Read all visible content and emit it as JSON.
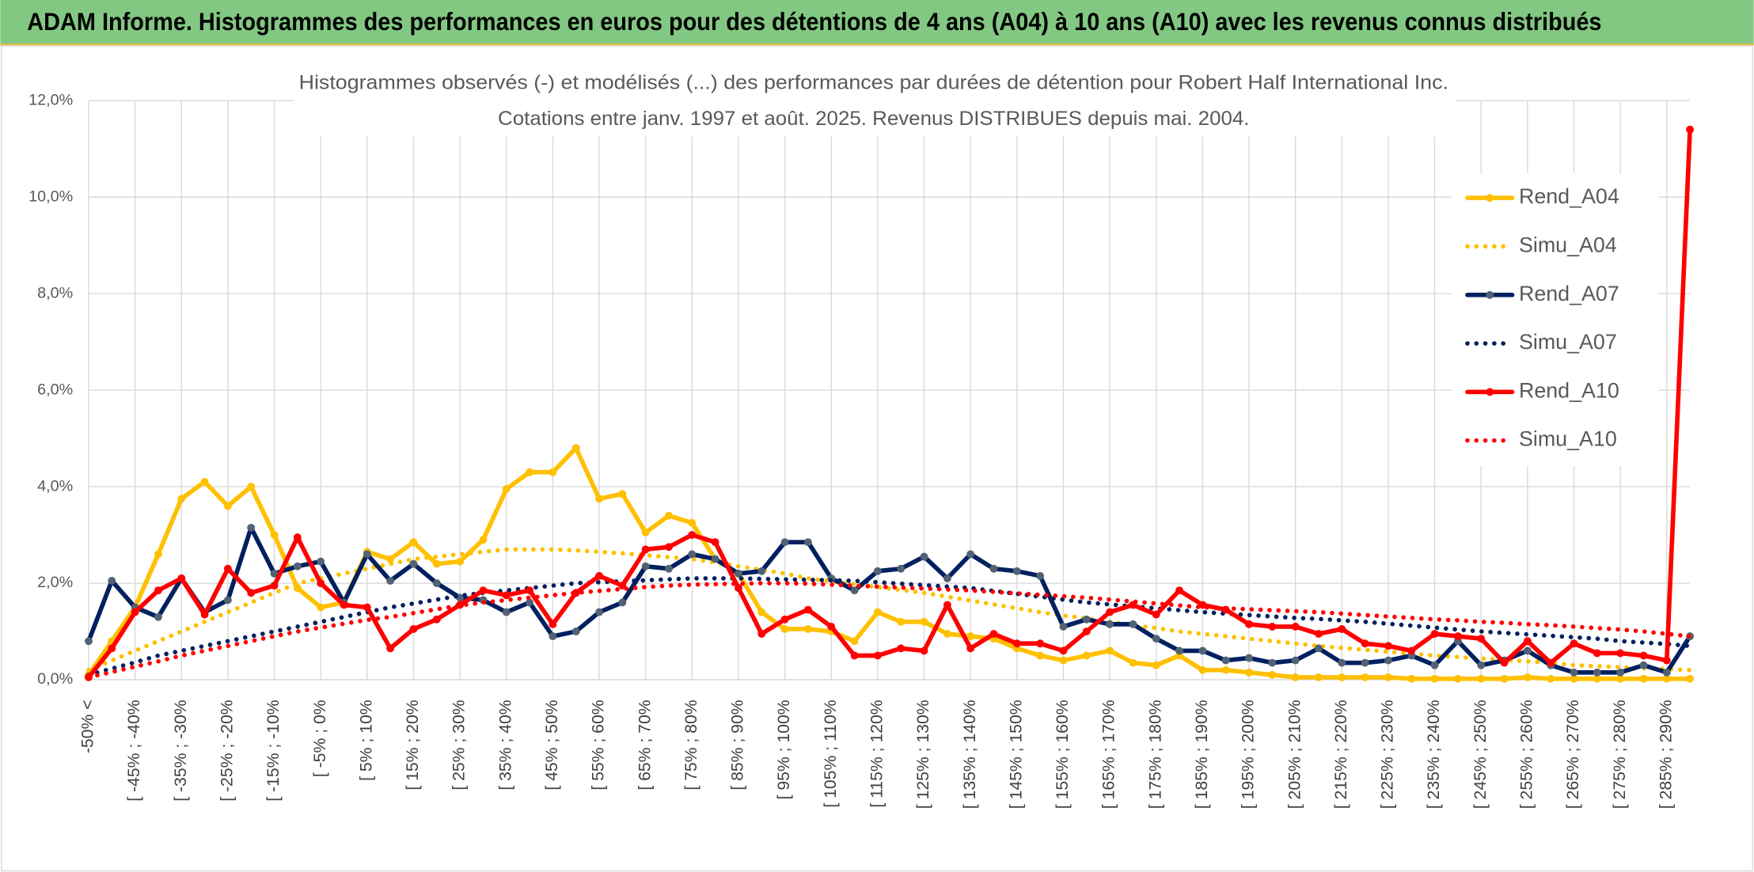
{
  "chart_data": {
    "type": "line",
    "header": "ADAM Informe. Histogrammes des performances en euros pour des détentions de 4 ans (A04) à 10 ans (A10) avec les revenus connus distribués",
    "title": "Histogrammes observés (-) et modélisés (...) des performances par durées de détention pour Robert Half International Inc.",
    "subtitle": "Cotations entre janv. 1997 et août. 2025. Revenus DISTRIBUES depuis mai. 2004.",
    "categories": [
      "-50% <",
      null,
      "[ -45% ; -40%",
      null,
      "[ -35% ; -30%",
      null,
      "[ -25% ; -20%",
      null,
      "[ -15% ; -10%",
      null,
      "[ -5% ; 0%",
      null,
      "[ 5% ; 10%",
      null,
      "[ 15% ; 20%",
      null,
      "[ 25% ; 30%",
      null,
      "[ 35% ; 40%",
      null,
      "[ 45% ; 50%",
      null,
      "[ 55% ; 60%",
      null,
      "[ 65% ; 70%",
      null,
      "[ 75% ; 80%",
      null,
      "[ 85% ; 90%",
      null,
      "[ 95% ; 100%",
      null,
      "[ 105% ; 110%",
      null,
      "[ 115% ; 120%",
      null,
      "[ 125% ; 130%",
      null,
      "[ 135% ; 140%",
      null,
      "[ 145% ; 150%",
      null,
      "[ 155% ; 160%",
      null,
      "[ 165% ; 170%",
      null,
      "[ 175% ; 180%",
      null,
      "[ 185% ; 190%",
      null,
      "[ 195% ; 200%",
      null,
      "[ 205% ; 210%",
      null,
      "[ 215% ; 220%",
      null,
      "[ 225% ; 230%",
      null,
      "[ 235% ; 240%",
      null,
      "[ 245% ; 250%",
      null,
      "[ 255% ; 260%",
      null,
      "[ 265% ; 270%",
      null,
      "[ 275% ; 280%",
      null,
      "[ 285% ; 290%",
      null
    ],
    "ylim": [
      0,
      12
    ],
    "yticks": [
      {
        "value": 0,
        "label": "0,0%"
      },
      {
        "value": 2,
        "label": "2,0%"
      },
      {
        "value": 4,
        "label": "4,0%"
      },
      {
        "value": 6,
        "label": "6,0%"
      },
      {
        "value": 8,
        "label": "8,0%"
      },
      {
        "value": 10,
        "label": "10,0%"
      },
      {
        "value": 12,
        "label": "12,0%"
      }
    ],
    "grid": true,
    "legend": "right",
    "series": [
      {
        "name": "Rend_A04",
        "color": "#ffc000",
        "style": "solid",
        "marker_color": "#ffc000",
        "values": [
          0.1,
          0.8,
          1.5,
          2.6,
          3.75,
          4.1,
          3.6,
          4.0,
          3.0,
          1.9,
          1.5,
          1.6,
          2.65,
          2.5,
          2.85,
          2.4,
          2.45,
          2.9,
          3.95,
          4.3,
          4.3,
          4.8,
          3.75,
          3.85,
          3.05,
          3.4,
          3.25,
          2.5,
          2.2,
          1.4,
          1.05,
          1.05,
          1.0,
          0.8,
          1.4,
          1.2,
          1.2,
          0.95,
          0.9,
          0.85,
          0.65,
          0.5,
          0.4,
          0.5,
          0.6,
          0.35,
          0.3,
          0.5,
          0.2,
          0.2,
          0.15,
          0.1,
          0.05,
          0.05,
          0.05,
          0.05,
          0.05,
          0.02,
          0.02,
          0.02,
          0.02,
          0.02,
          0.05,
          0.02,
          0.02,
          0.02,
          0.02,
          0.02,
          0.02,
          0.02
        ]
      },
      {
        "name": "Simu_A04",
        "color": "#ffc000",
        "style": "dotted",
        "values": [
          0.2,
          0.4,
          0.6,
          0.8,
          1.0,
          1.2,
          1.4,
          1.6,
          1.8,
          2.0,
          2.1,
          2.2,
          2.3,
          2.4,
          2.5,
          2.55,
          2.6,
          2.65,
          2.7,
          2.7,
          2.7,
          2.68,
          2.65,
          2.62,
          2.58,
          2.54,
          2.5,
          2.43,
          2.35,
          2.28,
          2.2,
          2.1,
          2.04,
          1.98,
          1.92,
          1.86,
          1.8,
          1.72,
          1.64,
          1.56,
          1.48,
          1.4,
          1.33,
          1.27,
          1.2,
          1.13,
          1.07,
          1.0,
          0.95,
          0.9,
          0.85,
          0.8,
          0.75,
          0.7,
          0.66,
          0.62,
          0.58,
          0.54,
          0.5,
          0.47,
          0.44,
          0.41,
          0.38,
          0.35,
          0.3,
          0.28,
          0.26,
          0.24,
          0.22,
          0.2
        ]
      },
      {
        "name": "Rend_A07",
        "color": "#002060",
        "style": "solid",
        "marker_color": "#526275",
        "values": [
          0.8,
          2.05,
          1.5,
          1.3,
          2.1,
          1.4,
          1.65,
          3.15,
          2.2,
          2.35,
          2.45,
          1.6,
          2.6,
          2.05,
          2.4,
          2.0,
          1.7,
          1.65,
          1.4,
          1.6,
          0.9,
          1.0,
          1.4,
          1.6,
          2.35,
          2.3,
          2.6,
          2.5,
          2.2,
          2.25,
          2.85,
          2.85,
          2.1,
          1.85,
          2.25,
          2.3,
          2.55,
          2.1,
          2.6,
          2.3,
          2.25,
          2.15,
          1.1,
          1.25,
          1.15,
          1.15,
          0.85,
          0.6,
          0.6,
          0.4,
          0.45,
          0.35,
          0.4,
          0.65,
          0.35,
          0.35,
          0.4,
          0.5,
          0.3,
          0.8,
          0.3,
          0.4,
          0.6,
          0.3,
          0.15,
          0.15,
          0.15,
          0.3,
          0.15,
          0.9
        ]
      },
      {
        "name": "Simu_A07",
        "color": "#002060",
        "style": "dotted",
        "values": [
          0.1,
          0.23,
          0.36,
          0.5,
          0.6,
          0.7,
          0.8,
          0.9,
          1.0,
          1.1,
          1.2,
          1.3,
          1.4,
          1.5,
          1.58,
          1.66,
          1.74,
          1.8,
          1.85,
          1.9,
          1.95,
          2.0,
          2.02,
          2.04,
          2.06,
          2.08,
          2.1,
          2.1,
          2.1,
          2.09,
          2.08,
          2.07,
          2.06,
          2.05,
          2.02,
          1.99,
          1.96,
          1.93,
          1.9,
          1.84,
          1.78,
          1.72,
          1.66,
          1.6,
          1.56,
          1.52,
          1.48,
          1.44,
          1.4,
          1.37,
          1.34,
          1.31,
          1.28,
          1.26,
          1.23,
          1.2,
          1.16,
          1.12,
          1.08,
          1.04,
          1.0,
          0.97,
          0.94,
          0.91,
          0.88,
          0.85,
          0.8,
          0.77,
          0.74,
          0.7
        ]
      },
      {
        "name": "Rend_A10",
        "color": "#ff0000",
        "style": "solid",
        "marker_color": "#ff0000",
        "values": [
          0.05,
          0.65,
          1.4,
          1.85,
          2.1,
          1.35,
          2.3,
          1.8,
          1.95,
          2.95,
          2.0,
          1.55,
          1.5,
          0.65,
          1.05,
          1.25,
          1.55,
          1.85,
          1.75,
          1.85,
          1.15,
          1.8,
          2.15,
          1.95,
          2.7,
          2.75,
          3.0,
          2.85,
          1.9,
          0.95,
          1.25,
          1.45,
          1.1,
          0.5,
          0.5,
          0.65,
          0.6,
          1.55,
          0.65,
          0.95,
          0.75,
          0.75,
          0.6,
          1.0,
          1.4,
          1.55,
          1.35,
          1.85,
          1.55,
          1.45,
          1.15,
          1.1,
          1.1,
          0.95,
          1.05,
          0.75,
          0.7,
          0.6,
          0.95,
          0.9,
          0.85,
          0.35,
          0.8,
          0.35,
          0.75,
          0.55,
          0.55,
          0.5,
          0.4,
          11.4
        ]
      },
      {
        "name": "Simu_A10",
        "color": "#ff0000",
        "style": "dotted",
        "values": [
          0.05,
          0.16,
          0.27,
          0.38,
          0.5,
          0.6,
          0.7,
          0.8,
          0.9,
          1.0,
          1.08,
          1.16,
          1.24,
          1.3,
          1.38,
          1.46,
          1.54,
          1.6,
          1.65,
          1.7,
          1.75,
          1.8,
          1.84,
          1.88,
          1.92,
          1.95,
          1.97,
          1.98,
          1.99,
          2.0,
          2.0,
          1.99,
          1.97,
          1.95,
          1.93,
          1.91,
          1.89,
          1.87,
          1.85,
          1.82,
          1.79,
          1.76,
          1.73,
          1.7,
          1.66,
          1.62,
          1.58,
          1.54,
          1.5,
          1.48,
          1.46,
          1.44,
          1.42,
          1.4,
          1.37,
          1.34,
          1.31,
          1.28,
          1.25,
          1.23,
          1.2,
          1.18,
          1.15,
          1.13,
          1.1,
          1.07,
          1.04,
          1.0,
          0.95,
          0.9
        ]
      }
    ]
  }
}
